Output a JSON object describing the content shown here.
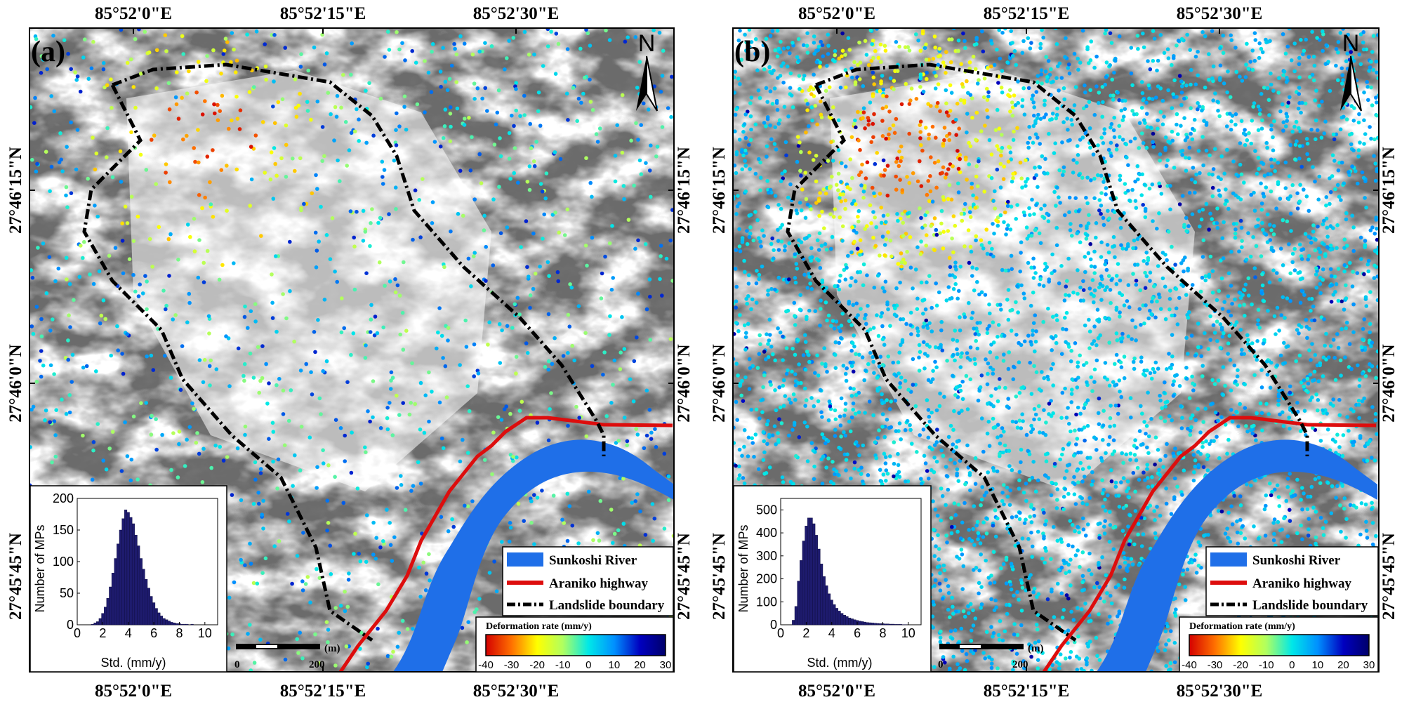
{
  "figure": {
    "panels": [
      {
        "label": "(a)",
        "lon_ticks": [
          "85°52'0\"E",
          "85°52'15\"E",
          "85°52'30\"E"
        ],
        "lat_ticks": [
          "27°46'15\"N",
          "27°46'0\"N",
          "27°45'45\"N"
        ],
        "north_label": "N",
        "legend": {
          "river": "Sunkoshi River",
          "highway": "Araniko highway",
          "boundary": "Landslide boundary"
        },
        "colorbar": {
          "title": "Deformation rate (mm/y)",
          "ticks": [
            "-40",
            "-30",
            "-20",
            "-10",
            "0",
            "10",
            "20",
            "30"
          ],
          "colors": [
            "#d40000",
            "#ff7000",
            "#ffff00",
            "#b0ff60",
            "#00e8e8",
            "#0090ff",
            "#0000c0",
            "#00006a"
          ]
        },
        "scale_bar": {
          "unit": "(m)",
          "zero": "0",
          "max": "200"
        },
        "histogram_color": "#1e1b6e"
      },
      {
        "label": "(b)",
        "lon_ticks": [
          "85°52'0\"E",
          "85°52'15\"E",
          "85°52'30\"E"
        ],
        "lat_ticks": [
          "27°46'15\"N",
          "27°46'0\"N",
          "27°45'45\"N"
        ],
        "north_label": "N",
        "legend": {
          "river": "Sunkoshi River",
          "highway": "Araniko highway",
          "boundary": "Landslide boundary"
        },
        "colorbar": {
          "title": "Deformation rate (mm/y)",
          "ticks": [
            "-40",
            "-30",
            "-20",
            "-10",
            "0",
            "10",
            "20",
            "30"
          ],
          "colors": [
            "#d40000",
            "#ff7000",
            "#ffff00",
            "#b0ff60",
            "#00e8e8",
            "#0090ff",
            "#0000c0",
            "#00006a"
          ]
        },
        "scale_bar": {
          "unit": "(m)",
          "zero": "0",
          "max": "200"
        },
        "histogram_color": "#1e1b6e"
      }
    ],
    "colors": {
      "river": "#1f6fe8",
      "highway": "#dd0d0d",
      "boundary": "#000000",
      "histogram_bars": "#1e1b6e"
    }
  },
  "chart_data": [
    {
      "type": "bar",
      "panel": "(a)",
      "xlabel": "Std. (mm/y)",
      "ylabel": "Number of MPs",
      "xlim": [
        0,
        11
      ],
      "ylim": [
        0,
        200
      ],
      "xticks": [
        "0",
        "2",
        "4",
        "6",
        "8",
        "10"
      ],
      "yticks": [
        "0",
        "50",
        "100",
        "150",
        "200"
      ],
      "bin_width": 0.2,
      "x": [
        1.2,
        1.4,
        1.6,
        1.8,
        2.0,
        2.2,
        2.4,
        2.6,
        2.8,
        3.0,
        3.2,
        3.4,
        3.6,
        3.8,
        4.0,
        4.2,
        4.4,
        4.6,
        4.8,
        5.0,
        5.2,
        5.4,
        5.6,
        5.8,
        6.0,
        6.2,
        6.4,
        6.6,
        6.8,
        7.0,
        7.2,
        7.4,
        7.6,
        7.8,
        8.0,
        8.2,
        8.4,
        8.6,
        8.8,
        9.0
      ],
      "values": [
        1,
        3,
        5,
        10,
        18,
        28,
        42,
        60,
        82,
        105,
        128,
        150,
        168,
        182,
        178,
        170,
        160,
        142,
        125,
        105,
        88,
        72,
        58,
        45,
        35,
        26,
        19,
        14,
        10,
        8,
        6,
        4,
        3,
        2,
        2,
        1,
        1,
        1,
        0,
        1
      ]
    },
    {
      "type": "bar",
      "panel": "(b)",
      "xlabel": "Std. (mm/y)",
      "ylabel": "Number of MPs",
      "xlim": [
        0,
        11
      ],
      "ylim": [
        0,
        550
      ],
      "xticks": [
        "0",
        "2",
        "4",
        "6",
        "8",
        "10"
      ],
      "yticks": [
        "0",
        "100",
        "200",
        "300",
        "400",
        "500"
      ],
      "bin_width": 0.2,
      "x": [
        1.0,
        1.2,
        1.4,
        1.6,
        1.8,
        2.0,
        2.2,
        2.4,
        2.6,
        2.8,
        3.0,
        3.2,
        3.4,
        3.6,
        3.8,
        4.0,
        4.2,
        4.4,
        4.6,
        4.8,
        5.0,
        5.2,
        5.4,
        5.6,
        5.8,
        6.0,
        6.2,
        6.4,
        6.6,
        6.8,
        7.0,
        7.2,
        7.4,
        7.6,
        7.8,
        8.0,
        8.2,
        8.4,
        8.6,
        8.8,
        9.0,
        9.2,
        9.4,
        9.6,
        9.8
      ],
      "values": [
        20,
        80,
        190,
        280,
        365,
        430,
        465,
        465,
        440,
        390,
        330,
        265,
        210,
        170,
        135,
        108,
        88,
        72,
        60,
        50,
        42,
        36,
        30,
        26,
        22,
        19,
        16,
        14,
        12,
        10,
        9,
        8,
        7,
        6,
        5,
        5,
        4,
        4,
        3,
        3,
        2,
        2,
        2,
        1,
        1
      ]
    }
  ]
}
